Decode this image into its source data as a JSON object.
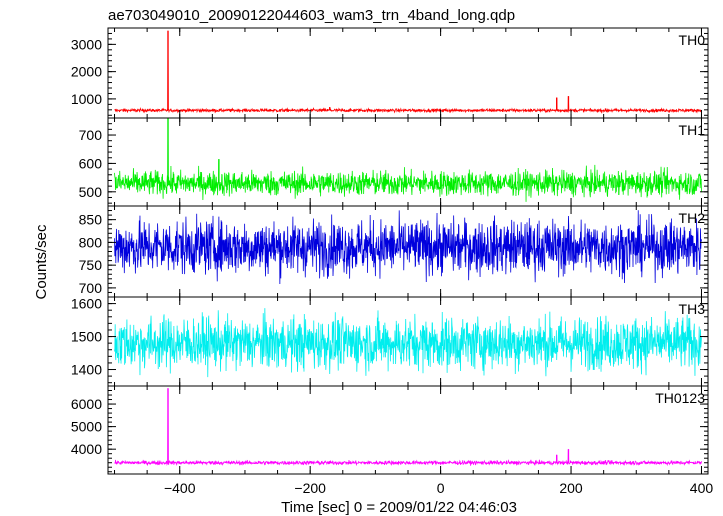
{
  "title": "ae703049010_20090122044603_wam3_trn_4band_long.qdp",
  "colors": {
    "TH0": "#ff0000",
    "TH1": "#00ee00",
    "TH2": "#0000dd",
    "TH3": "#00eeee",
    "TH0123": "#ff00ff",
    "axis": "#000000"
  },
  "chart_data": {
    "type": "line",
    "title": "ae703049010_20090122044603_wam3_trn_4band_long.qdp",
    "xlabel": "Time [sec] 0 = 2009/01/22 04:46:03",
    "ylabel": "Counts/sec",
    "xlim": [
      -510,
      410
    ],
    "x_ticks": [
      -400,
      -200,
      0,
      200,
      400
    ],
    "x_tick_labels": [
      "−400",
      "−200",
      "0",
      "200",
      "400"
    ],
    "x_range_data": [
      -500,
      400
    ],
    "panels": [
      {
        "name": "TH0",
        "ylim": [
          300,
          3600
        ],
        "y_ticks": [
          1000,
          2000,
          3000
        ],
        "y_tick_labels": [
          "1000",
          "2000",
          "3000"
        ],
        "baseline": 580,
        "noise": 30,
        "spikes": [
          {
            "x": -418,
            "y": 3500
          },
          {
            "x": 178,
            "y": 1050
          },
          {
            "x": 196,
            "y": 1100
          },
          {
            "x": -170,
            "y": 700
          }
        ]
      },
      {
        "name": "TH1",
        "ylim": [
          450,
          760
        ],
        "y_ticks": [
          500,
          600,
          700
        ],
        "y_tick_labels": [
          "500",
          "600",
          "700"
        ],
        "baseline": 530,
        "noise": 22,
        "spikes": [
          {
            "x": -418,
            "y": 760
          },
          {
            "x": -340,
            "y": 615
          }
        ]
      },
      {
        "name": "TH2",
        "ylim": [
          680,
          880
        ],
        "y_ticks": [
          700,
          750,
          800,
          850
        ],
        "y_tick_labels": [
          "700",
          "750",
          "800",
          "850"
        ],
        "baseline": 790,
        "noise": 30,
        "spikes": []
      },
      {
        "name": "TH3",
        "ylim": [
          1350,
          1620
        ],
        "y_ticks": [
          1400,
          1500,
          1600
        ],
        "y_tick_labels": [
          "1400",
          "1500",
          "1600"
        ],
        "baseline": 1480,
        "noise": 40,
        "spikes": []
      },
      {
        "name": "TH0123",
        "ylim": [
          2900,
          6800
        ],
        "y_ticks": [
          4000,
          5000,
          6000
        ],
        "y_tick_labels": [
          "4000",
          "5000",
          "6000"
        ],
        "baseline": 3400,
        "noise": 45,
        "spikes": [
          {
            "x": -418,
            "y": 6700
          },
          {
            "x": 178,
            "y": 3750
          },
          {
            "x": 196,
            "y": 4000
          }
        ]
      }
    ]
  }
}
